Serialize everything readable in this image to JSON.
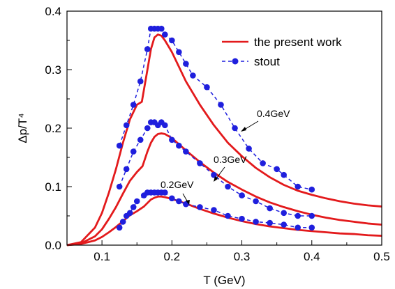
{
  "chart_data": {
    "type": "line",
    "title": "",
    "xlabel": "T (GeV)",
    "ylabel": "Δp/T⁴",
    "xlim": [
      0.05,
      0.5
    ],
    "ylim": [
      0.0,
      0.4
    ],
    "x_ticks": [
      "0.1",
      "0.2",
      "0.3",
      "0.4",
      "0.5"
    ],
    "y_ticks": [
      "0.0",
      "0.1",
      "0.2",
      "0.3",
      "0.4"
    ],
    "grid": false,
    "legend_position": "top-right",
    "legend": [
      {
        "label": "the present work",
        "style": "solid",
        "color": "#e31a1c"
      },
      {
        "label": "stout",
        "style": "dashed-markers",
        "color": "#1f1fdd"
      }
    ],
    "annotations": [
      {
        "text": "0.4GeV",
        "arrow_to": [
          0.345,
          0.188
        ]
      },
      {
        "text": "0.3GeV",
        "arrow_to": [
          0.302,
          0.103
        ]
      },
      {
        "text": "0.2GeV",
        "arrow_to": [
          0.232,
          0.07
        ]
      }
    ],
    "series": [
      {
        "name": "the present work",
        "group": "0.4GeV",
        "x": [
          0.05,
          0.07,
          0.09,
          0.1,
          0.11,
          0.12,
          0.13,
          0.14,
          0.15,
          0.157,
          0.165,
          0.17,
          0.175,
          0.18,
          0.185,
          0.19,
          0.2,
          0.21,
          0.22,
          0.24,
          0.26,
          0.28,
          0.3,
          0.32,
          0.34,
          0.36,
          0.38,
          0.4,
          0.42,
          0.44,
          0.46,
          0.48,
          0.5
        ],
        "y": [
          0.0,
          0.005,
          0.03,
          0.055,
          0.09,
          0.13,
          0.175,
          0.215,
          0.24,
          0.245,
          0.3,
          0.335,
          0.355,
          0.36,
          0.358,
          0.35,
          0.33,
          0.305,
          0.28,
          0.24,
          0.205,
          0.175,
          0.152,
          0.132,
          0.116,
          0.103,
          0.093,
          0.086,
          0.08,
          0.075,
          0.071,
          0.068,
          0.066
        ]
      },
      {
        "name": "the present work",
        "group": "0.3GeV",
        "x": [
          0.05,
          0.07,
          0.09,
          0.1,
          0.11,
          0.12,
          0.13,
          0.14,
          0.15,
          0.158,
          0.165,
          0.17,
          0.175,
          0.18,
          0.185,
          0.19,
          0.2,
          0.22,
          0.24,
          0.26,
          0.28,
          0.3,
          0.32,
          0.34,
          0.36,
          0.38,
          0.4,
          0.42,
          0.44,
          0.46,
          0.48,
          0.5
        ],
        "y": [
          0.0,
          0.003,
          0.015,
          0.027,
          0.045,
          0.065,
          0.088,
          0.11,
          0.125,
          0.135,
          0.16,
          0.175,
          0.185,
          0.19,
          0.191,
          0.19,
          0.183,
          0.162,
          0.142,
          0.124,
          0.108,
          0.095,
          0.083,
          0.073,
          0.065,
          0.058,
          0.052,
          0.047,
          0.043,
          0.04,
          0.037,
          0.035
        ]
      },
      {
        "name": "the present work",
        "group": "0.2GeV",
        "x": [
          0.05,
          0.07,
          0.09,
          0.1,
          0.11,
          0.12,
          0.13,
          0.14,
          0.15,
          0.16,
          0.17,
          0.175,
          0.18,
          0.185,
          0.19,
          0.2,
          0.22,
          0.24,
          0.26,
          0.28,
          0.3,
          0.32,
          0.34,
          0.36,
          0.38,
          0.4,
          0.42,
          0.44,
          0.46,
          0.48,
          0.5
        ],
        "y": [
          0.0,
          0.002,
          0.008,
          0.014,
          0.022,
          0.031,
          0.041,
          0.051,
          0.058,
          0.066,
          0.078,
          0.081,
          0.083,
          0.083,
          0.082,
          0.079,
          0.071,
          0.062,
          0.054,
          0.047,
          0.041,
          0.036,
          0.032,
          0.029,
          0.026,
          0.024,
          0.022,
          0.02,
          0.019,
          0.017,
          0.016
        ]
      },
      {
        "name": "stout",
        "group": "0.4GeV",
        "x": [
          0.125,
          0.135,
          0.145,
          0.155,
          0.165,
          0.17,
          0.175,
          0.18,
          0.185,
          0.19,
          0.2,
          0.21,
          0.22,
          0.23,
          0.25,
          0.27,
          0.29,
          0.31,
          0.33,
          0.35,
          0.36,
          0.38,
          0.4
        ],
        "y": [
          0.17,
          0.205,
          0.24,
          0.28,
          0.335,
          0.37,
          0.37,
          0.37,
          0.37,
          0.36,
          0.35,
          0.33,
          0.31,
          0.29,
          0.27,
          0.24,
          0.2,
          0.165,
          0.14,
          0.13,
          0.12,
          0.1,
          0.095
        ]
      },
      {
        "name": "stout",
        "group": "0.3GeV",
        "x": [
          0.125,
          0.135,
          0.145,
          0.155,
          0.165,
          0.17,
          0.175,
          0.18,
          0.185,
          0.19,
          0.2,
          0.21,
          0.22,
          0.24,
          0.26,
          0.28,
          0.3,
          0.32,
          0.34,
          0.36,
          0.38,
          0.4
        ],
        "y": [
          0.1,
          0.13,
          0.16,
          0.18,
          0.2,
          0.21,
          0.21,
          0.205,
          0.21,
          0.205,
          0.18,
          0.17,
          0.16,
          0.14,
          0.12,
          0.1,
          0.085,
          0.075,
          0.063,
          0.055,
          0.05,
          0.05
        ]
      },
      {
        "name": "stout",
        "group": "0.2GeV",
        "x": [
          0.125,
          0.13,
          0.135,
          0.14,
          0.145,
          0.15,
          0.16,
          0.165,
          0.17,
          0.175,
          0.18,
          0.185,
          0.19,
          0.2,
          0.21,
          0.22,
          0.24,
          0.26,
          0.28,
          0.3,
          0.32,
          0.34,
          0.36,
          0.38,
          0.4
        ],
        "y": [
          0.03,
          0.04,
          0.05,
          0.055,
          0.065,
          0.075,
          0.085,
          0.09,
          0.09,
          0.09,
          0.09,
          0.09,
          0.09,
          0.08,
          0.075,
          0.07,
          0.065,
          0.06,
          0.05,
          0.045,
          0.04,
          0.038,
          0.035,
          0.03,
          0.03
        ]
      }
    ]
  }
}
